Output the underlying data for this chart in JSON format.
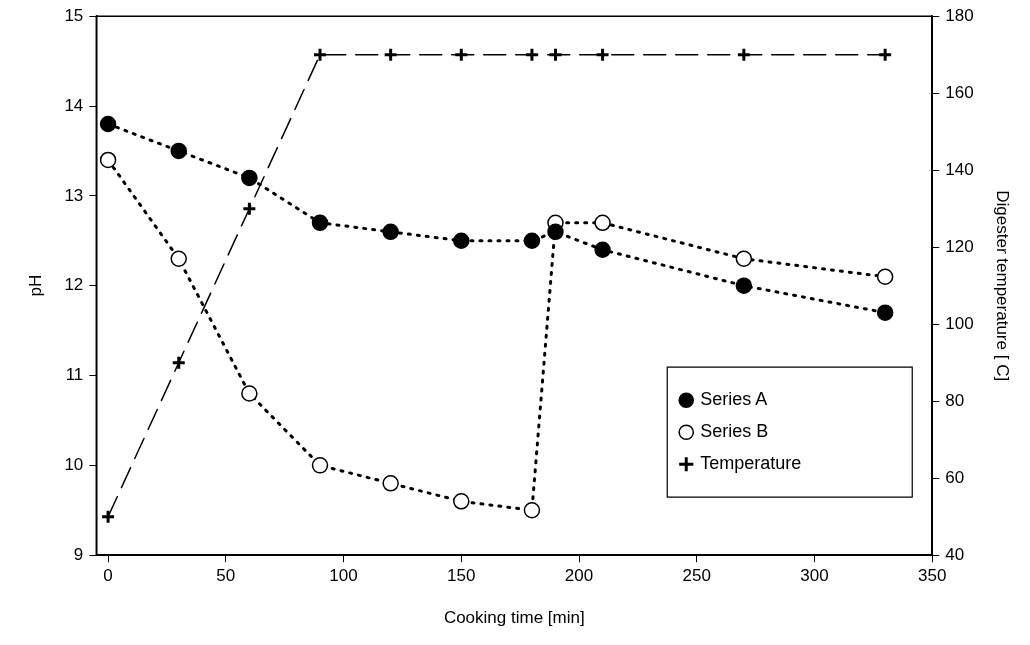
{
  "chart_data": {
    "type": "line",
    "xlabel": "Cooking time [min]",
    "ylabel": "pH",
    "y2label": "Digester temperature [ C]",
    "xlim": [
      -5,
      350
    ],
    "xticks": [
      0,
      50,
      100,
      150,
      200,
      250,
      300,
      350
    ],
    "ylim": [
      9,
      15
    ],
    "yticks": [
      9,
      10,
      11,
      12,
      13,
      14,
      15
    ],
    "y2lim": [
      40,
      180
    ],
    "y2ticks": [
      40,
      60,
      80,
      100,
      120,
      140,
      160,
      180
    ],
    "grid": false,
    "legend": "bottom right",
    "series": [
      {
        "name": "Series A",
        "color": "#000000",
        "marker": "circle",
        "line_style": "dotted",
        "x": [
          0,
          30,
          60,
          90,
          120,
          150,
          180,
          190,
          210,
          270,
          330
        ],
        "values": [
          13.8,
          13.5,
          13.2,
          12.7,
          12.6,
          12.5,
          12.5,
          12.6,
          12.4,
          12.0,
          11.7
        ]
      },
      {
        "name": "Series B",
        "color": "#ffffff",
        "marker": "circle",
        "line_style": "dotted",
        "x": [
          0,
          30,
          60,
          90,
          120,
          150,
          180,
          190,
          210,
          270,
          330
        ],
        "values": [
          13.4,
          12.3,
          10.8,
          10.0,
          9.8,
          9.6,
          9.5,
          12.7,
          12.7,
          12.3,
          12.1
        ]
      },
      {
        "name": "Temperature",
        "color": "#000000",
        "marker": "cross",
        "line_style": "dashed",
        "axis": "y2",
        "x": [
          0,
          30,
          60,
          90,
          120,
          150,
          180,
          190,
          210,
          270,
          330
        ],
        "values": [
          50,
          90,
          130,
          170,
          170,
          170,
          170,
          170,
          170,
          170,
          170
        ]
      }
    ]
  }
}
